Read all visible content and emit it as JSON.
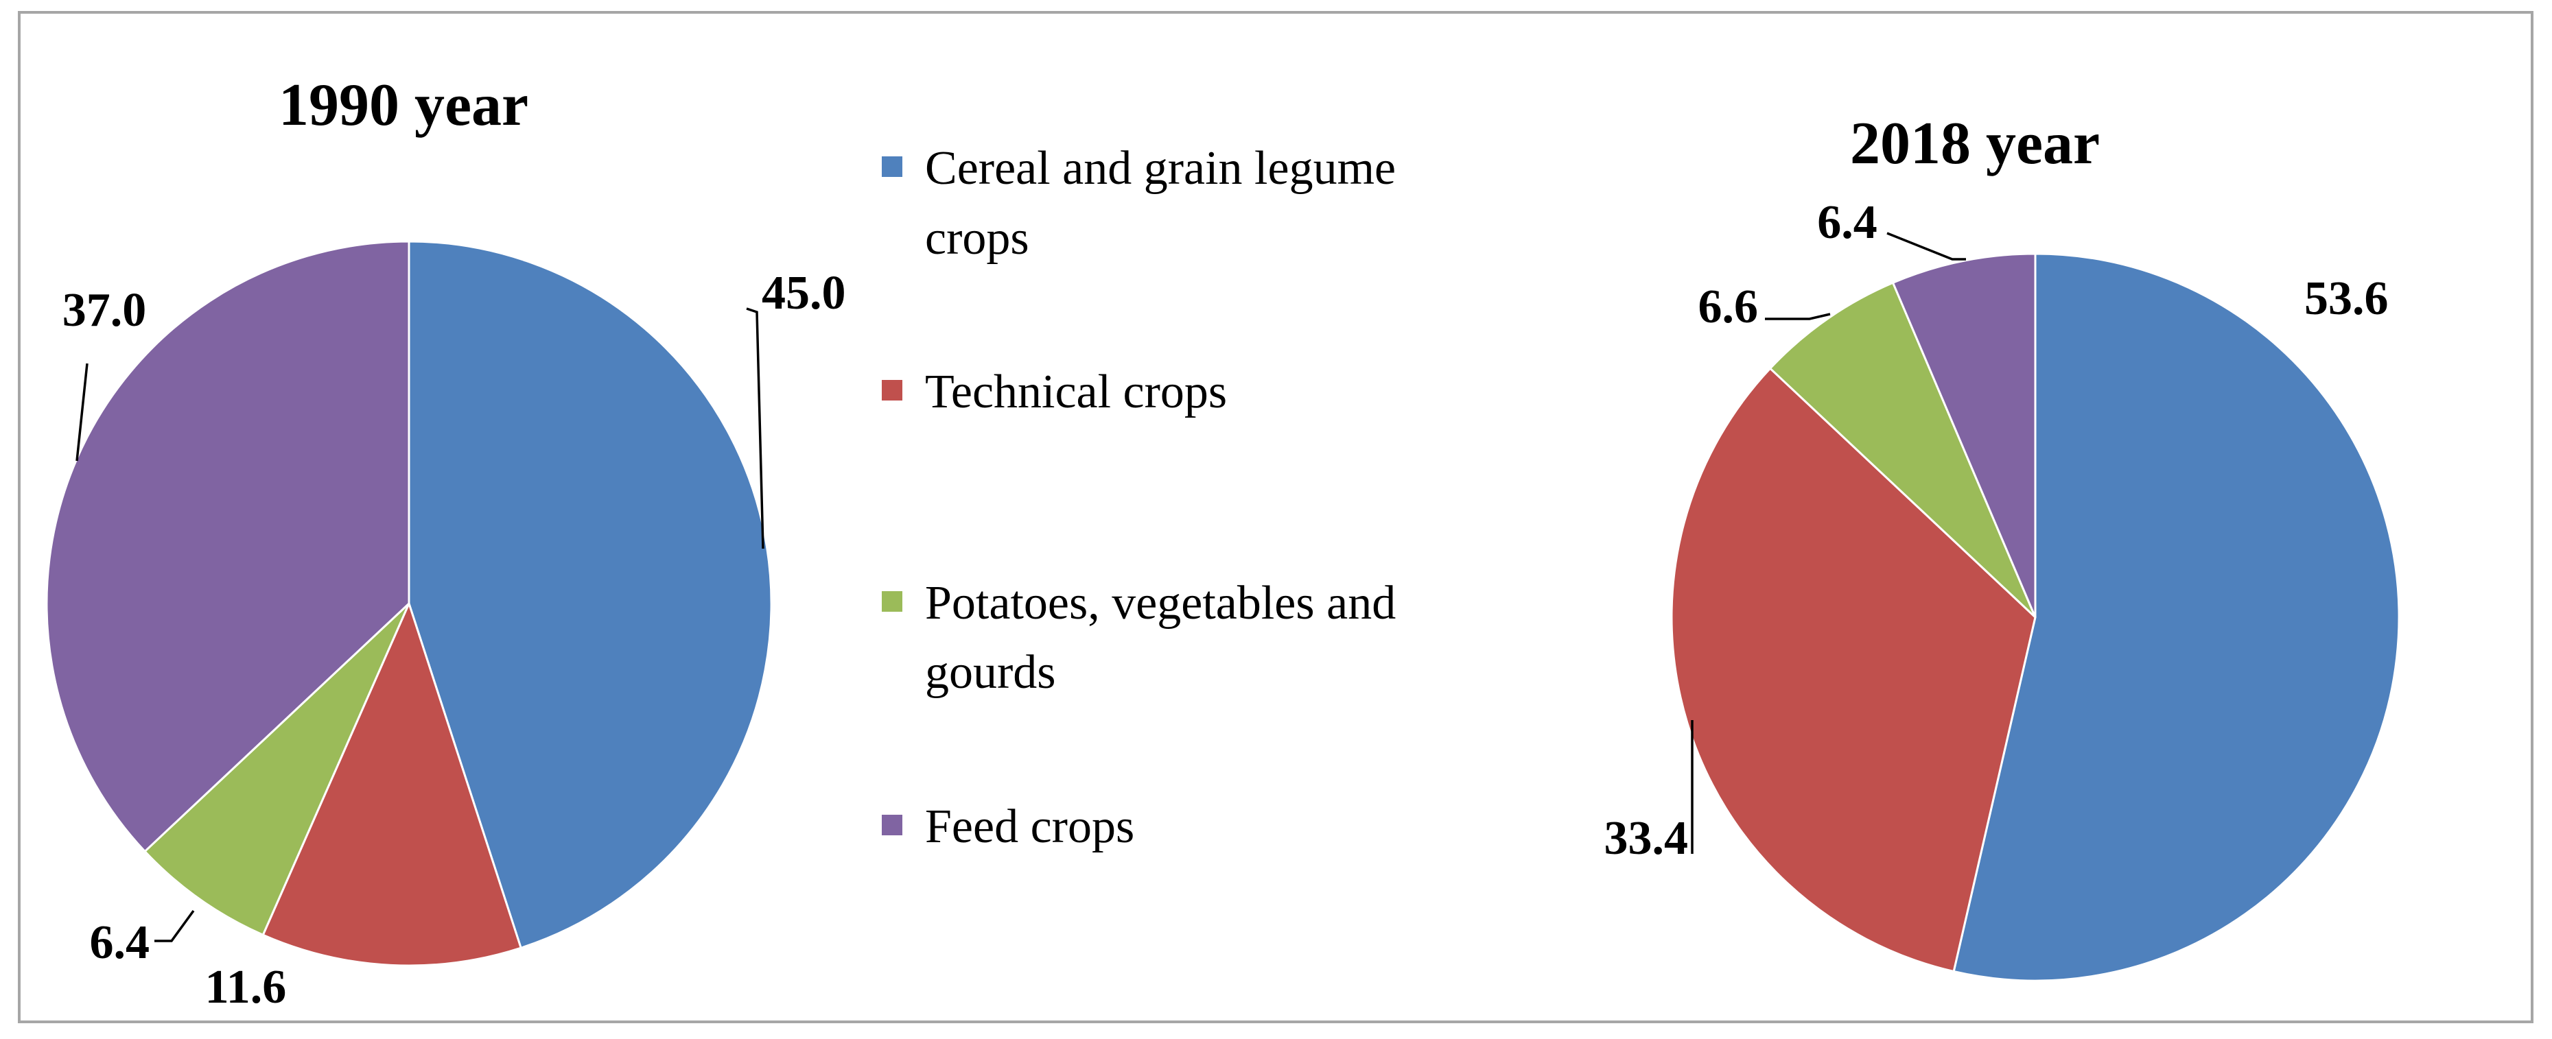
{
  "chart_data": [
    {
      "type": "pie",
      "title": "1990 year",
      "categories": [
        "Cereal and grain legume crops",
        "Technical crops",
        "Potatoes, vegetables and gourds",
        "Feed crops"
      ],
      "values": [
        45.0,
        11.6,
        6.4,
        37.0
      ],
      "labels": [
        "45.0",
        "11.6",
        "6.4",
        "37.0"
      ]
    },
    {
      "type": "pie",
      "title": "2018 year",
      "categories": [
        "Cereal and grain legume crops",
        "Technical crops",
        "Potatoes, vegetables and gourds",
        "Feed crops"
      ],
      "values": [
        53.6,
        33.4,
        6.6,
        6.4
      ],
      "labels": [
        "53.6",
        "33.4",
        "6.6",
        "6.4"
      ]
    }
  ],
  "legend": {
    "position": "center",
    "items": [
      {
        "lines": [
          "Cereal and grain legume",
          "crops"
        ],
        "color": "#4f81bd"
      },
      {
        "lines": [
          "Technical crops"
        ],
        "color": "#c0504d"
      },
      {
        "lines": [
          "Potatoes, vegetables and",
          "gourds"
        ],
        "color": "#9bbb59"
      },
      {
        "lines": [
          "Feed crops"
        ],
        "color": "#8064a2"
      }
    ]
  }
}
